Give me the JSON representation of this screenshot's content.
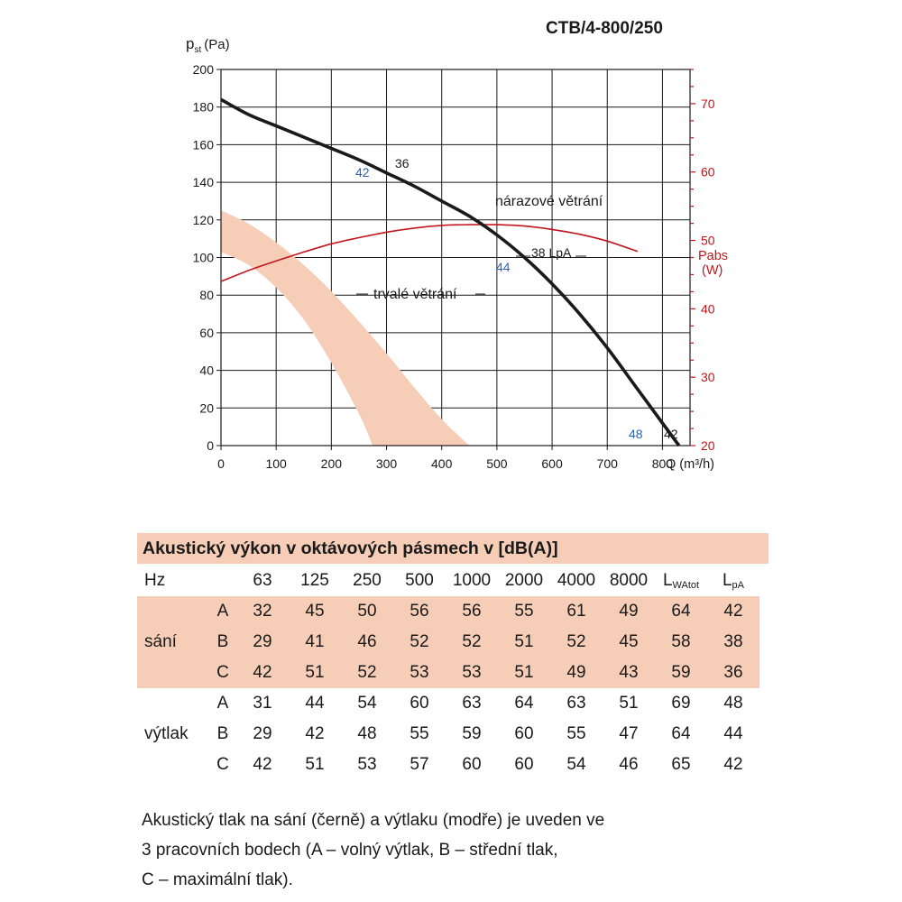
{
  "chart_data": {
    "type": "line",
    "title": "CTB/4-800/250",
    "ylabel_main": "p",
    "ylabel_sub": "st",
    "ylabel_unit": "(Pa)",
    "xlabel": "Q (m³/h)",
    "xlim": [
      0,
      850
    ],
    "ylim": [
      0,
      200
    ],
    "xticks": [
      0,
      100,
      200,
      300,
      400,
      500,
      600,
      700,
      800
    ],
    "yticks": [
      0,
      20,
      40,
      60,
      80,
      100,
      120,
      140,
      160,
      180,
      200
    ],
    "y2label_1": "Pabs",
    "y2label_2": "(W)",
    "y2lim": [
      20,
      75
    ],
    "y2ticks": [
      20,
      30,
      40,
      50,
      60,
      70
    ],
    "series": [
      {
        "name": "pressure",
        "color": "#1a1a1a",
        "axis": "left",
        "x": [
          0,
          50,
          100,
          150,
          200,
          250,
          300,
          350,
          400,
          450,
          500,
          550,
          600,
          650,
          700,
          750,
          800,
          830
        ],
        "y": [
          184,
          176,
          170,
          164,
          158,
          152,
          145,
          138,
          130,
          122,
          112,
          100,
          86,
          70,
          52,
          32,
          12,
          0
        ]
      },
      {
        "name": "Pabs",
        "color": "#c0161c",
        "axis": "right",
        "x": [
          0,
          50,
          100,
          150,
          200,
          250,
          300,
          350,
          400,
          450,
          500,
          550,
          600,
          650,
          700,
          755
        ],
        "y": [
          44,
          45.6,
          47,
          48.3,
          49.5,
          50.4,
          51.2,
          51.8,
          52.2,
          52.3,
          52.3,
          52.1,
          51.6,
          50.9,
          49.9,
          48.4
        ]
      }
    ],
    "band": {
      "name": "trvalé větrání",
      "color": "#f6cdb6",
      "upper": {
        "x": [
          0,
          50,
          100,
          150,
          200,
          250,
          300,
          350,
          400,
          450
        ],
        "y": [
          125,
          118,
          108,
          96,
          82,
          66,
          49,
          31,
          14,
          0
        ]
      },
      "lower": {
        "x": [
          0,
          50,
          100,
          150,
          200,
          250,
          275
        ],
        "y": [
          103,
          96,
          84,
          67,
          44,
          17,
          0
        ]
      }
    },
    "annotations": {
      "narazove": "nárazové větrání",
      "trvale": "trvalé větrání",
      "p1_black": "36",
      "p1_blue": "42",
      "p2_black": "38 LpA",
      "p2_blue": "44",
      "p3_black": "42",
      "p3_blue": "48"
    },
    "colors": {
      "black": "#1a1a1a",
      "blue": "#2a62b0",
      "red": "#c0161c",
      "band": "#f6cdb6"
    }
  },
  "table": {
    "title": "Akustický výkon v oktávových pásmech v [dB(A)]",
    "hz_label": "Hz",
    "freqs": [
      "63",
      "125",
      "250",
      "500",
      "1000",
      "2000",
      "4000",
      "8000"
    ],
    "lwa_main": "L",
    "lwa_sub": "WAtot",
    "lpa_main": "L",
    "lpa_sub": "pA",
    "groups": [
      {
        "name": "sání",
        "rows": [
          {
            "label": "A",
            "values": [
              "32",
              "45",
              "50",
              "56",
              "56",
              "55",
              "61",
              "49",
              "64",
              "42"
            ]
          },
          {
            "label": "B",
            "values": [
              "29",
              "41",
              "46",
              "52",
              "52",
              "51",
              "52",
              "45",
              "58",
              "38"
            ]
          },
          {
            "label": "C",
            "values": [
              "42",
              "51",
              "52",
              "53",
              "53",
              "51",
              "49",
              "43",
              "59",
              "36"
            ]
          }
        ]
      },
      {
        "name": "výtlak",
        "rows": [
          {
            "label": "A",
            "values": [
              "31",
              "44",
              "54",
              "60",
              "63",
              "64",
              "63",
              "51",
              "69",
              "48"
            ]
          },
          {
            "label": "B",
            "values": [
              "29",
              "42",
              "48",
              "55",
              "59",
              "60",
              "55",
              "47",
              "64",
              "44"
            ]
          },
          {
            "label": "C",
            "values": [
              "42",
              "51",
              "53",
              "57",
              "60",
              "60",
              "54",
              "46",
              "65",
              "42"
            ]
          }
        ]
      }
    ]
  },
  "note": [
    "Akustický tlak na sání (černě) a výtlaku (modře) je uveden ve",
    "3 pracovních bodech (A – volný výtlak, B – střední tlak,",
    "C – maximální tlak)."
  ]
}
